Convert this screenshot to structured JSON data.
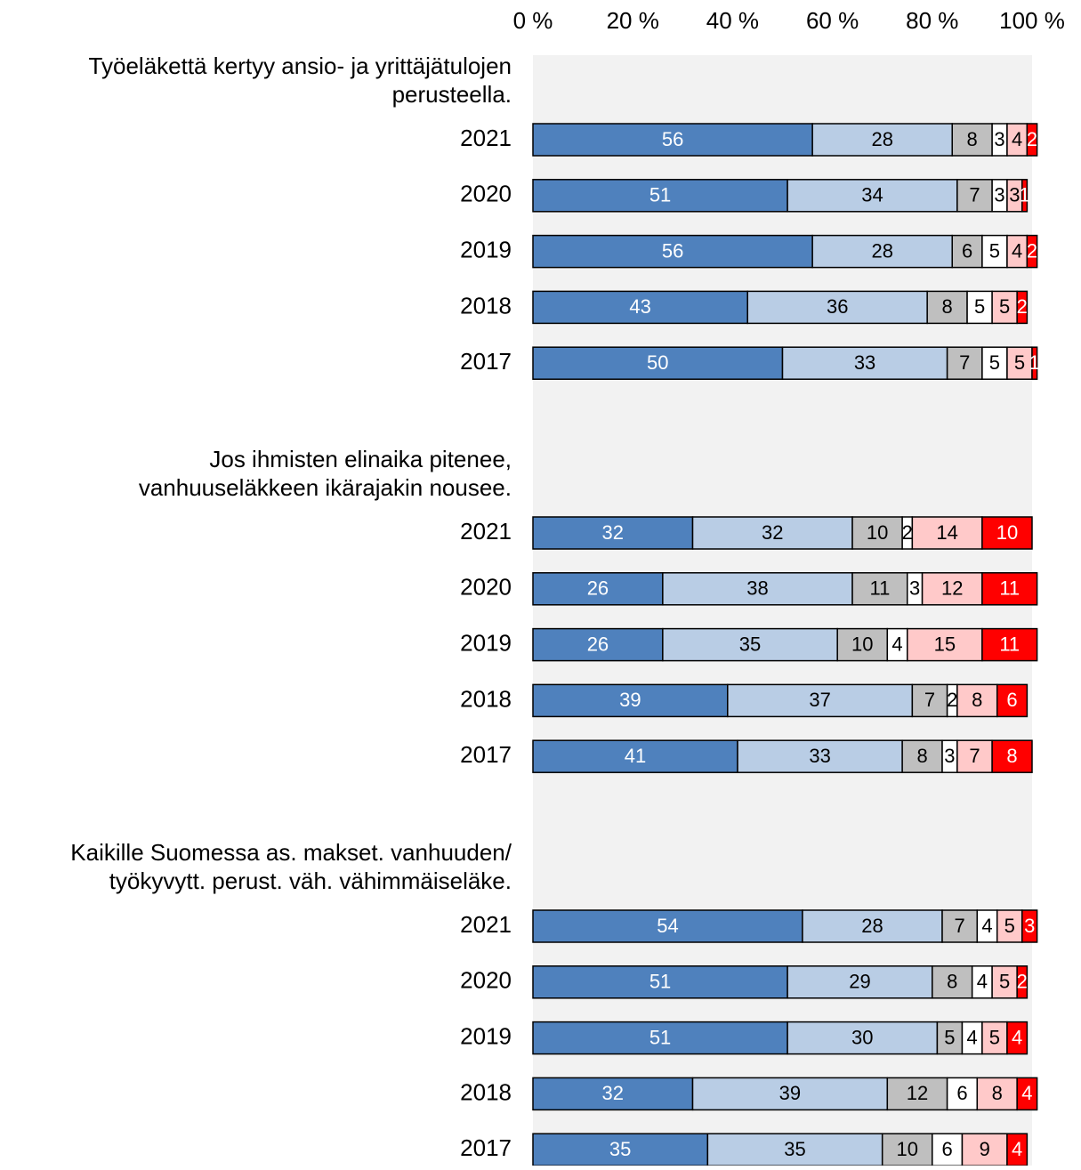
{
  "chart_data": {
    "type": "bar",
    "orientation": "horizontal",
    "stacked": true,
    "xlim": [
      0,
      100
    ],
    "xticks": [
      {
        "value": 0,
        "label": "0 %"
      },
      {
        "value": 20,
        "label": "20 %"
      },
      {
        "value": 40,
        "label": "40 %"
      },
      {
        "value": 60,
        "label": "60 %"
      },
      {
        "value": 80,
        "label": "80 %"
      },
      {
        "value": 100,
        "label": "100 %"
      }
    ],
    "groups": [
      {
        "title": [
          "Työeläkettä kertyy ansio- ja yrittäjätulojen",
          "perusteella."
        ],
        "categories": [
          "2021",
          "2020",
          "2019",
          "2018",
          "2017"
        ],
        "series": [
          {
            "color": "#4f81bd",
            "label_color": "#ffffff",
            "values": [
              56,
              51,
              56,
              43,
              50
            ]
          },
          {
            "color": "#b9cde5",
            "label_color": "#000000",
            "values": [
              28,
              34,
              28,
              36,
              33
            ]
          },
          {
            "color": "#bfbfbf",
            "label_color": "#000000",
            "values": [
              8,
              7,
              6,
              8,
              7
            ]
          },
          {
            "color": "#ffffff",
            "label_color": "#000000",
            "values": [
              3,
              3,
              5,
              5,
              5
            ]
          },
          {
            "color": "#ffc9c9",
            "label_color": "#000000",
            "values": [
              4,
              3,
              4,
              5,
              5
            ]
          },
          {
            "color": "#ff0000",
            "label_color": "#ffffff",
            "values": [
              2,
              1,
              2,
              2,
              1
            ]
          }
        ]
      },
      {
        "title": [
          "Jos ihmisten elinaika pitenee,",
          "vanhuuseläkkeen ikärajakin nousee."
        ],
        "categories": [
          "2021",
          "2020",
          "2019",
          "2018",
          "2017"
        ],
        "series": [
          {
            "color": "#4f81bd",
            "label_color": "#ffffff",
            "values": [
              32,
              26,
              26,
              39,
              41
            ]
          },
          {
            "color": "#b9cde5",
            "label_color": "#000000",
            "values": [
              32,
              38,
              35,
              37,
              33
            ]
          },
          {
            "color": "#bfbfbf",
            "label_color": "#000000",
            "values": [
              10,
              11,
              10,
              7,
              8
            ]
          },
          {
            "color": "#ffffff",
            "label_color": "#000000",
            "values": [
              2,
              3,
              4,
              2,
              3
            ]
          },
          {
            "color": "#ffc9c9",
            "label_color": "#000000",
            "values": [
              14,
              12,
              15,
              8,
              7
            ]
          },
          {
            "color": "#ff0000",
            "label_color": "#ffffff",
            "values": [
              10,
              11,
              11,
              6,
              8
            ]
          }
        ]
      },
      {
        "title": [
          "Kaikille Suomessa as. makset. vanhuuden/",
          "työkyvytt. perust. väh. vähimmäiseläke."
        ],
        "categories": [
          "2021",
          "2020",
          "2019",
          "2018",
          "2017"
        ],
        "series": [
          {
            "color": "#4f81bd",
            "label_color": "#ffffff",
            "values": [
              54,
              51,
              51,
              32,
              35
            ]
          },
          {
            "color": "#b9cde5",
            "label_color": "#000000",
            "values": [
              28,
              29,
              30,
              39,
              35
            ]
          },
          {
            "color": "#bfbfbf",
            "label_color": "#000000",
            "values": [
              7,
              8,
              5,
              12,
              10
            ]
          },
          {
            "color": "#ffffff",
            "label_color": "#000000",
            "values": [
              4,
              4,
              4,
              6,
              6
            ]
          },
          {
            "color": "#ffc9c9",
            "label_color": "#000000",
            "values": [
              5,
              5,
              5,
              8,
              9
            ]
          },
          {
            "color": "#ff0000",
            "label_color": "#ffffff",
            "values": [
              3,
              2,
              4,
              4,
              4
            ]
          }
        ]
      }
    ]
  }
}
